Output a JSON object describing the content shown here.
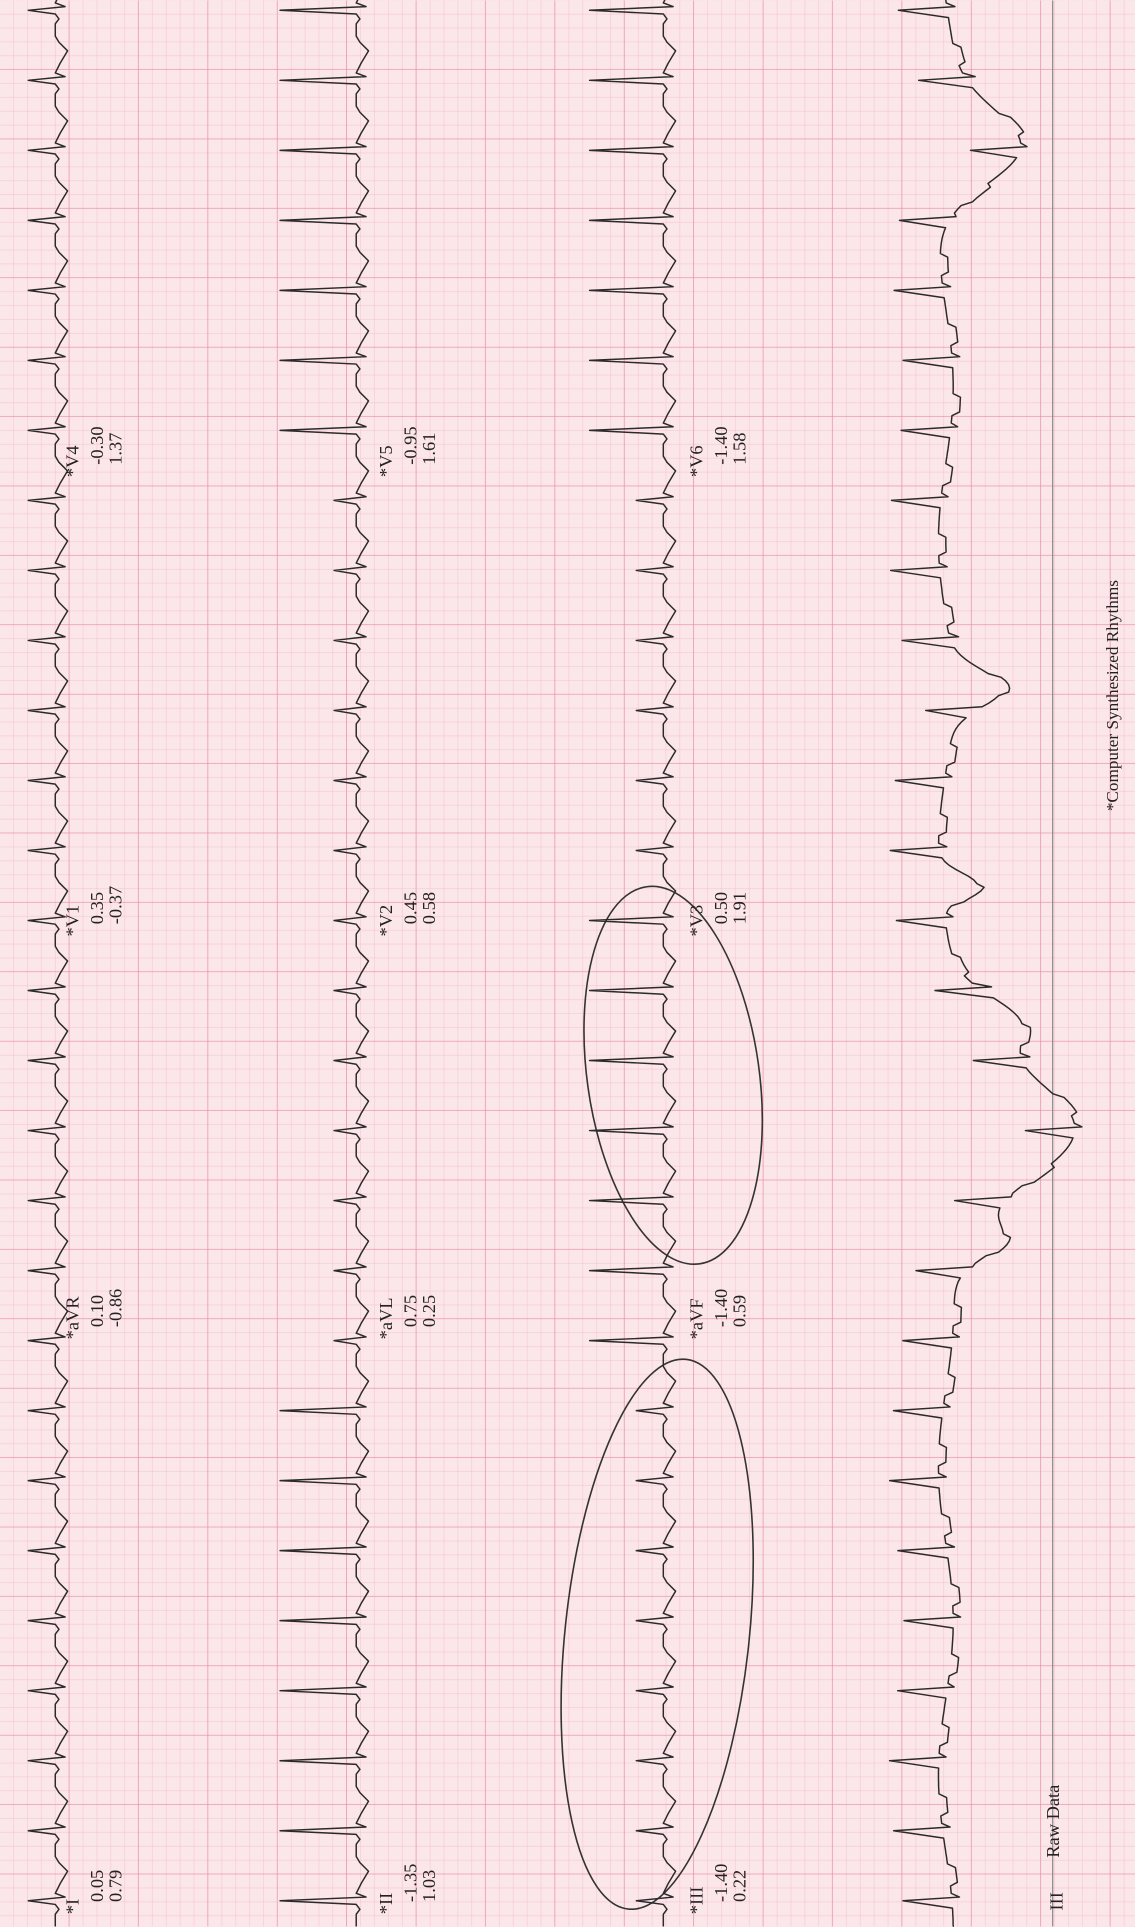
{
  "leads": [
    {
      "label": "*I",
      "values": [
        "0.05",
        "0.79"
      ]
    },
    {
      "label": "*aVR",
      "values": [
        "0.10",
        "-0.86"
      ]
    },
    {
      "label": "*V1",
      "values": [
        "0.35",
        "-0.37"
      ]
    },
    {
      "label": "*V4",
      "values": [
        "-0.30",
        "1.37"
      ]
    },
    {
      "label": "*II",
      "values": [
        "-1.35",
        "1.03"
      ]
    },
    {
      "label": "*aVL",
      "values": [
        "0.75",
        "0.25"
      ]
    },
    {
      "label": "*V2",
      "values": [
        "0.45",
        "0.58"
      ]
    },
    {
      "label": "*V5",
      "values": [
        "-0.95",
        "1.61"
      ]
    },
    {
      "label": "*III",
      "values": [
        "-1.40",
        "0.22"
      ]
    },
    {
      "label": "*aVF",
      "values": [
        "-1.40",
        "0.59"
      ]
    },
    {
      "label": "*V3",
      "values": [
        "0.50",
        "1.91"
      ]
    },
    {
      "label": "*V6",
      "values": [
        "-1.40",
        "1.58"
      ]
    }
  ],
  "rhythm": {
    "label": "III",
    "caption": "Raw Data"
  },
  "footer": "*Computer Synthesized Rhythms"
}
